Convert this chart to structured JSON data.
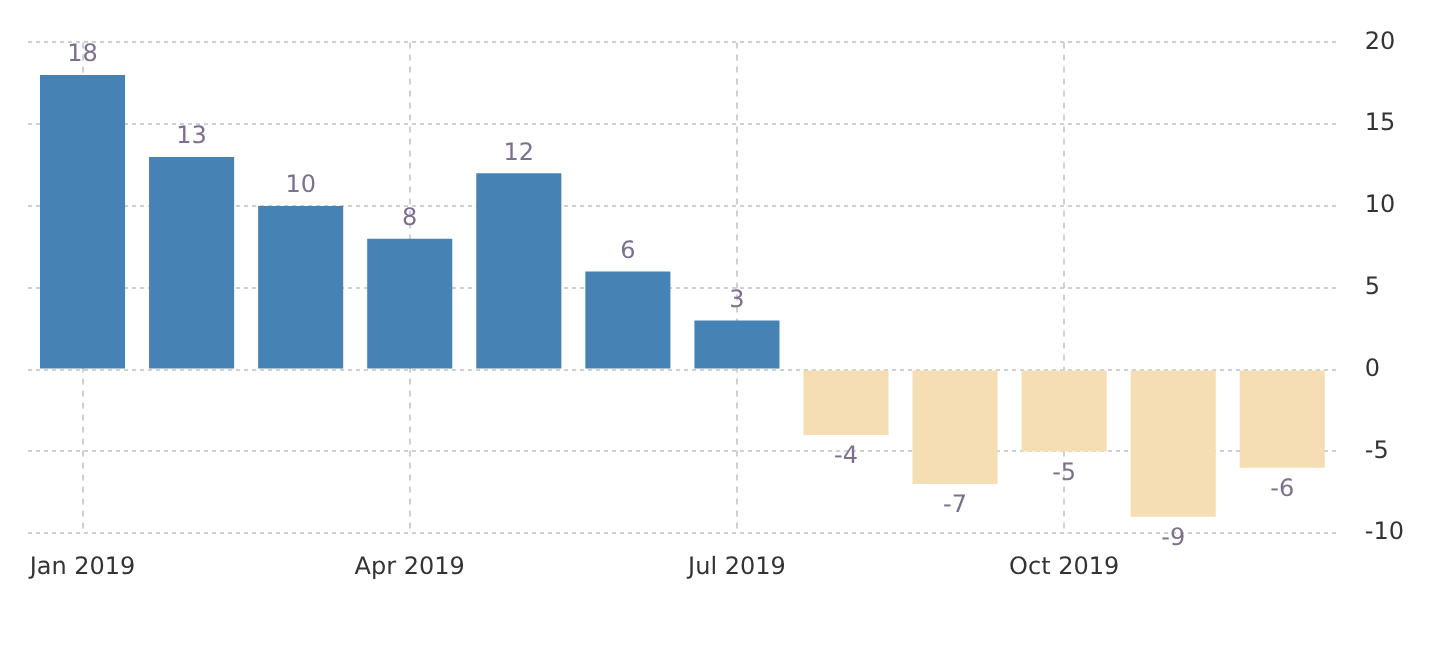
{
  "chart_data": {
    "type": "bar",
    "categories": [
      "Jan 2019",
      null,
      null,
      "Apr 2019",
      null,
      null,
      "Jul 2019",
      null,
      null,
      "Oct 2019",
      null,
      null
    ],
    "values": [
      18,
      13,
      10,
      8,
      12,
      6,
      3,
      -4,
      -7,
      -5,
      -9,
      -6
    ],
    "colors": [
      "#4682b4",
      "#4682b4",
      "#4682b4",
      "#4682b4",
      "#4682b4",
      "#4682b4",
      "#4682b4",
      "#f5deb3",
      "#f5deb3",
      "#f5deb3",
      "#f5deb3",
      "#f5deb3"
    ],
    "ylim": [
      -10,
      20
    ],
    "yticks": [
      -10,
      -5,
      0,
      5,
      10,
      15,
      20
    ],
    "grid": true,
    "legend": false,
    "data_labels": true
  }
}
